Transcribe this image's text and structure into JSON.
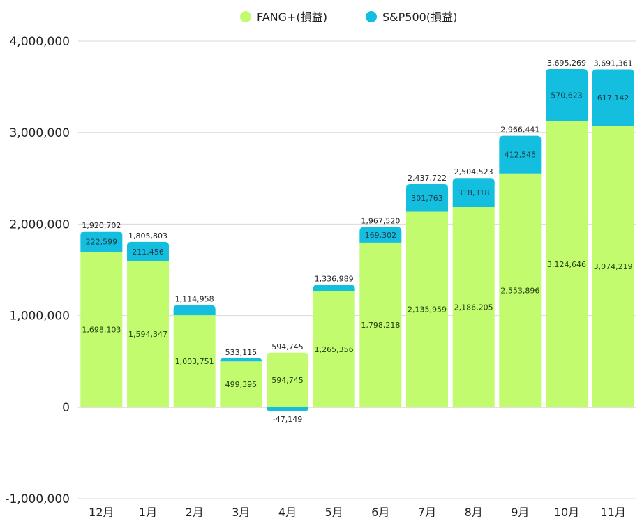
{
  "chart_data": {
    "type": "bar",
    "stacked": true,
    "title": "",
    "xlabel": "",
    "ylabel": "",
    "categories": [
      "12月",
      "1月",
      "2月",
      "3月",
      "4月",
      "5月",
      "6月",
      "7月",
      "8月",
      "9月",
      "10月",
      "11月"
    ],
    "series": [
      {
        "name": "FANG+(損益)",
        "color": "#c2fb6e",
        "values": [
          1698103,
          1594347,
          1003751,
          499395,
          594745,
          1265356,
          1798218,
          2135959,
          2186205,
          2553896,
          3124646,
          3074219
        ],
        "labels": [
          "1,698,103",
          "1,594,347",
          "1,003,751",
          "499,395",
          "594,745",
          "1,265,356",
          "1,798,218",
          "2,135,959",
          "2,186,205",
          "2,553,896",
          "3,124,646",
          "3,074,219"
        ]
      },
      {
        "name": "S&P500(損益)",
        "color": "#14bedf",
        "values": [
          222599,
          211456,
          111207,
          33720,
          -47149,
          71633,
          169302,
          301763,
          318318,
          412545,
          570623,
          617142
        ],
        "labels": [
          "222,599",
          "211,456",
          "",
          "",
          "-47,149",
          "",
          "169,302",
          "301,763",
          "318,318",
          "412,545",
          "570,623",
          "617,142"
        ]
      }
    ],
    "totals": [
      "1,920,702",
      "1,805,803",
      "1,114,958",
      "533,115",
      "594,745",
      "1,336,989",
      "1,967,520",
      "2,437,722",
      "2,504,523",
      "2,966,441",
      "3,695,269",
      "3,691,361"
    ],
    "ylim": [
      -1000000,
      4000000
    ],
    "yticks": [
      4000000,
      3000000,
      2000000,
      1000000,
      0,
      -1000000
    ],
    "ytick_labels": [
      "4,000,000",
      "3,000,000",
      "2,000,000",
      "1,000,000",
      "0",
      "-1,000,000"
    ],
    "grid": true,
    "legend": "top-center"
  }
}
